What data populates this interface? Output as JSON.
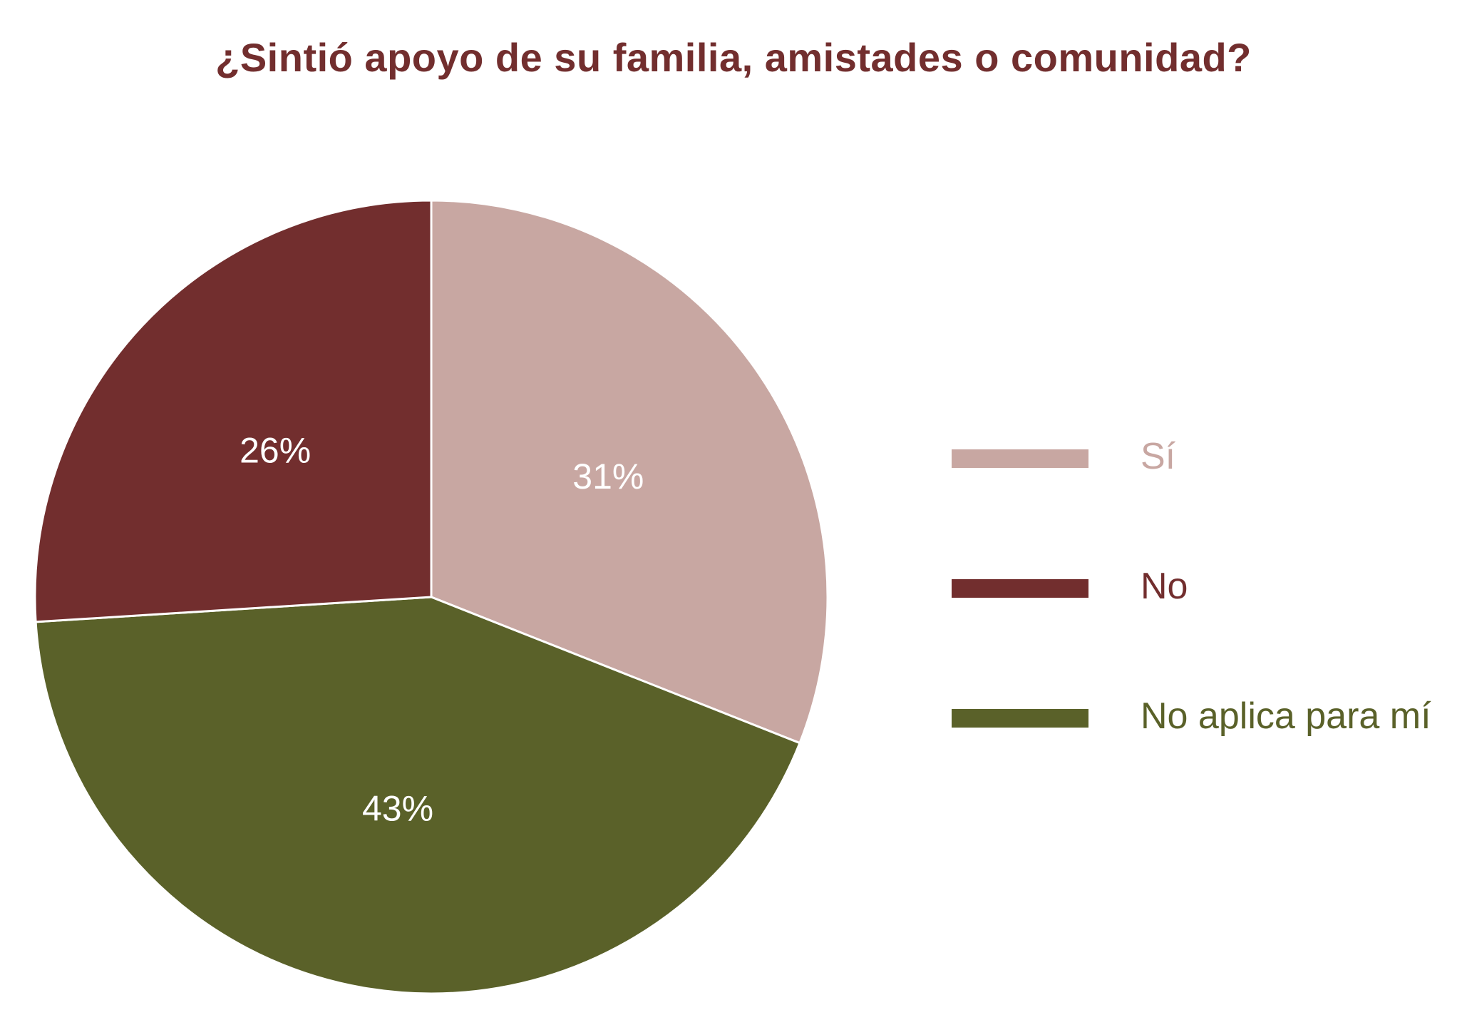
{
  "chart_data": {
    "type": "pie",
    "title": "¿Sintió apoyo de su familia, amistades o comunidad?",
    "slices": [
      {
        "label": "Sí",
        "value": 31,
        "display": "31%",
        "color": "#c8a7a2"
      },
      {
        "label": "No aplica para mí",
        "value": 43,
        "display": "43%",
        "color": "#5a6129"
      },
      {
        "label": "No",
        "value": 26,
        "display": "26%",
        "color": "#722e2e"
      }
    ],
    "legend": [
      {
        "label": "Sí",
        "color": "#c8a7a2"
      },
      {
        "label": "No",
        "color": "#722e2e"
      },
      {
        "label": "No aplica para mí",
        "color": "#5a6129"
      }
    ],
    "legend_position": "right",
    "data_label_color": "#ffffff",
    "slice_border_color": "#ffffff"
  }
}
